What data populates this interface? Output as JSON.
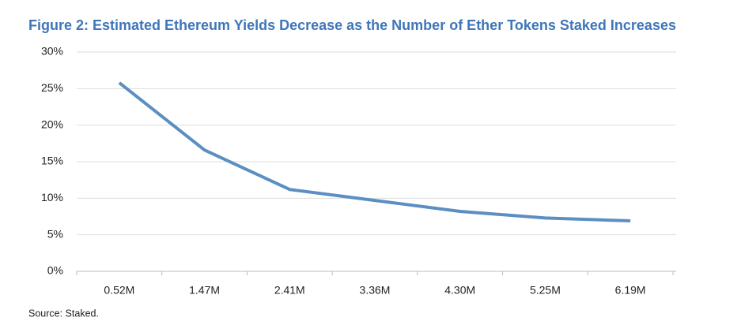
{
  "chart_data": {
    "type": "line",
    "title": "Figure 2: Estimated Ethereum Yields Decrease as the Number of Ether Tokens Staked Increases",
    "source": "Source: Staked.",
    "categories": [
      "0.52M",
      "1.47M",
      "2.41M",
      "3.36M",
      "4.30M",
      "5.25M",
      "6.19M"
    ],
    "values": [
      25.8,
      16.6,
      11.2,
      9.7,
      8.2,
      7.3,
      6.9
    ],
    "color": "#5b8fc2",
    "ylim": [
      0,
      30
    ],
    "yticks": [
      {
        "value": 0,
        "label": "0%"
      },
      {
        "value": 5,
        "label": "5%"
      },
      {
        "value": 10,
        "label": "10%"
      },
      {
        "value": 15,
        "label": "15%"
      },
      {
        "value": 20,
        "label": "20%"
      },
      {
        "value": 25,
        "label": "25%"
      },
      {
        "value": 30,
        "label": "30%"
      }
    ],
    "grid": true
  }
}
